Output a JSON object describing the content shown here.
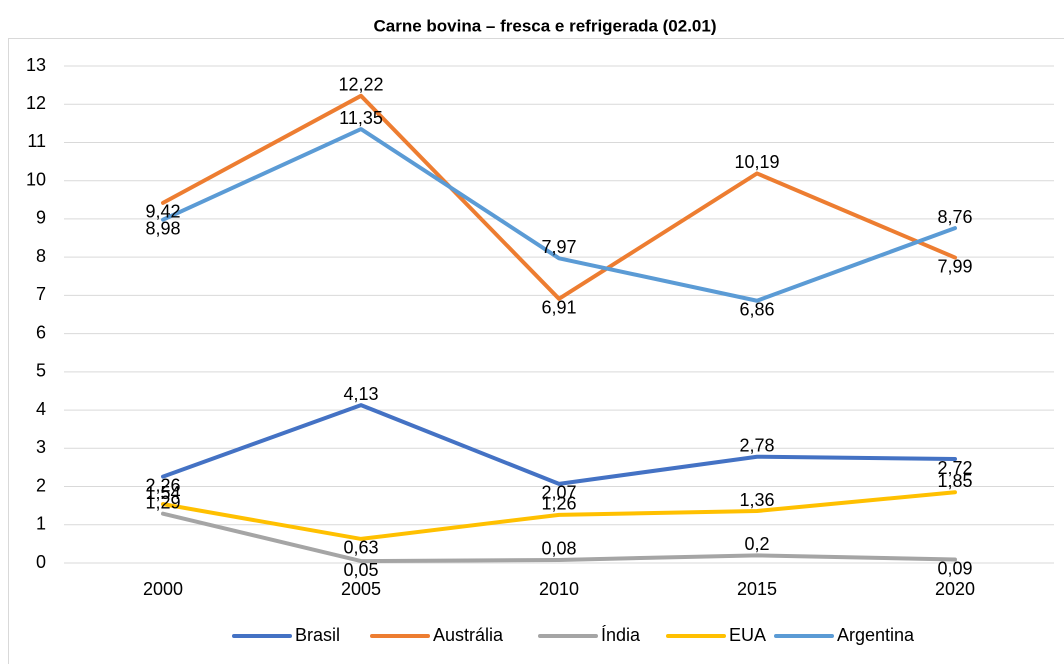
{
  "chart_data": {
    "type": "line",
    "title": "Carne bovina – fresca e refrigerada (02.01)",
    "categories": [
      "2000",
      "2005",
      "2010",
      "2015",
      "2020"
    ],
    "series": [
      {
        "name": "Brasil",
        "color": "#4472c4",
        "values": [
          2.26,
          4.13,
          2.07,
          2.78,
          2.72
        ],
        "value_labels": [
          "2,26",
          "4,13",
          "2,07",
          "2,78",
          "2,72"
        ]
      },
      {
        "name": "Austrália",
        "color": "#ed7d31",
        "values": [
          9.42,
          12.22,
          6.91,
          10.19,
          7.99
        ],
        "value_labels": [
          "9,42",
          "12,22",
          "6,91",
          "10,19",
          "7,99"
        ]
      },
      {
        "name": "Índia",
        "color": "#a5a5a5",
        "values": [
          1.29,
          0.05,
          0.08,
          0.2,
          0.09
        ],
        "value_labels": [
          "1,29",
          "0,05",
          "0,08",
          "0,2",
          "0,09"
        ]
      },
      {
        "name": "EUA",
        "color": "#ffc000",
        "values": [
          1.54,
          0.63,
          1.26,
          1.36,
          1.85
        ],
        "value_labels": [
          "1,54",
          "0,63",
          "1,26",
          "1,36",
          "1,85"
        ]
      },
      {
        "name": "Argentina",
        "color": "#5b9bd5",
        "values": [
          8.98,
          11.35,
          7.97,
          6.86,
          8.76
        ],
        "value_labels": [
          "8,98",
          "11,35",
          "7,97",
          "6,86",
          "8,76"
        ]
      }
    ],
    "ylim": [
      0,
      13
    ],
    "yticks": [
      0,
      1,
      2,
      3,
      4,
      5,
      6,
      7,
      8,
      9,
      10,
      11,
      12,
      13
    ],
    "grid": true,
    "legend": "bottom"
  }
}
